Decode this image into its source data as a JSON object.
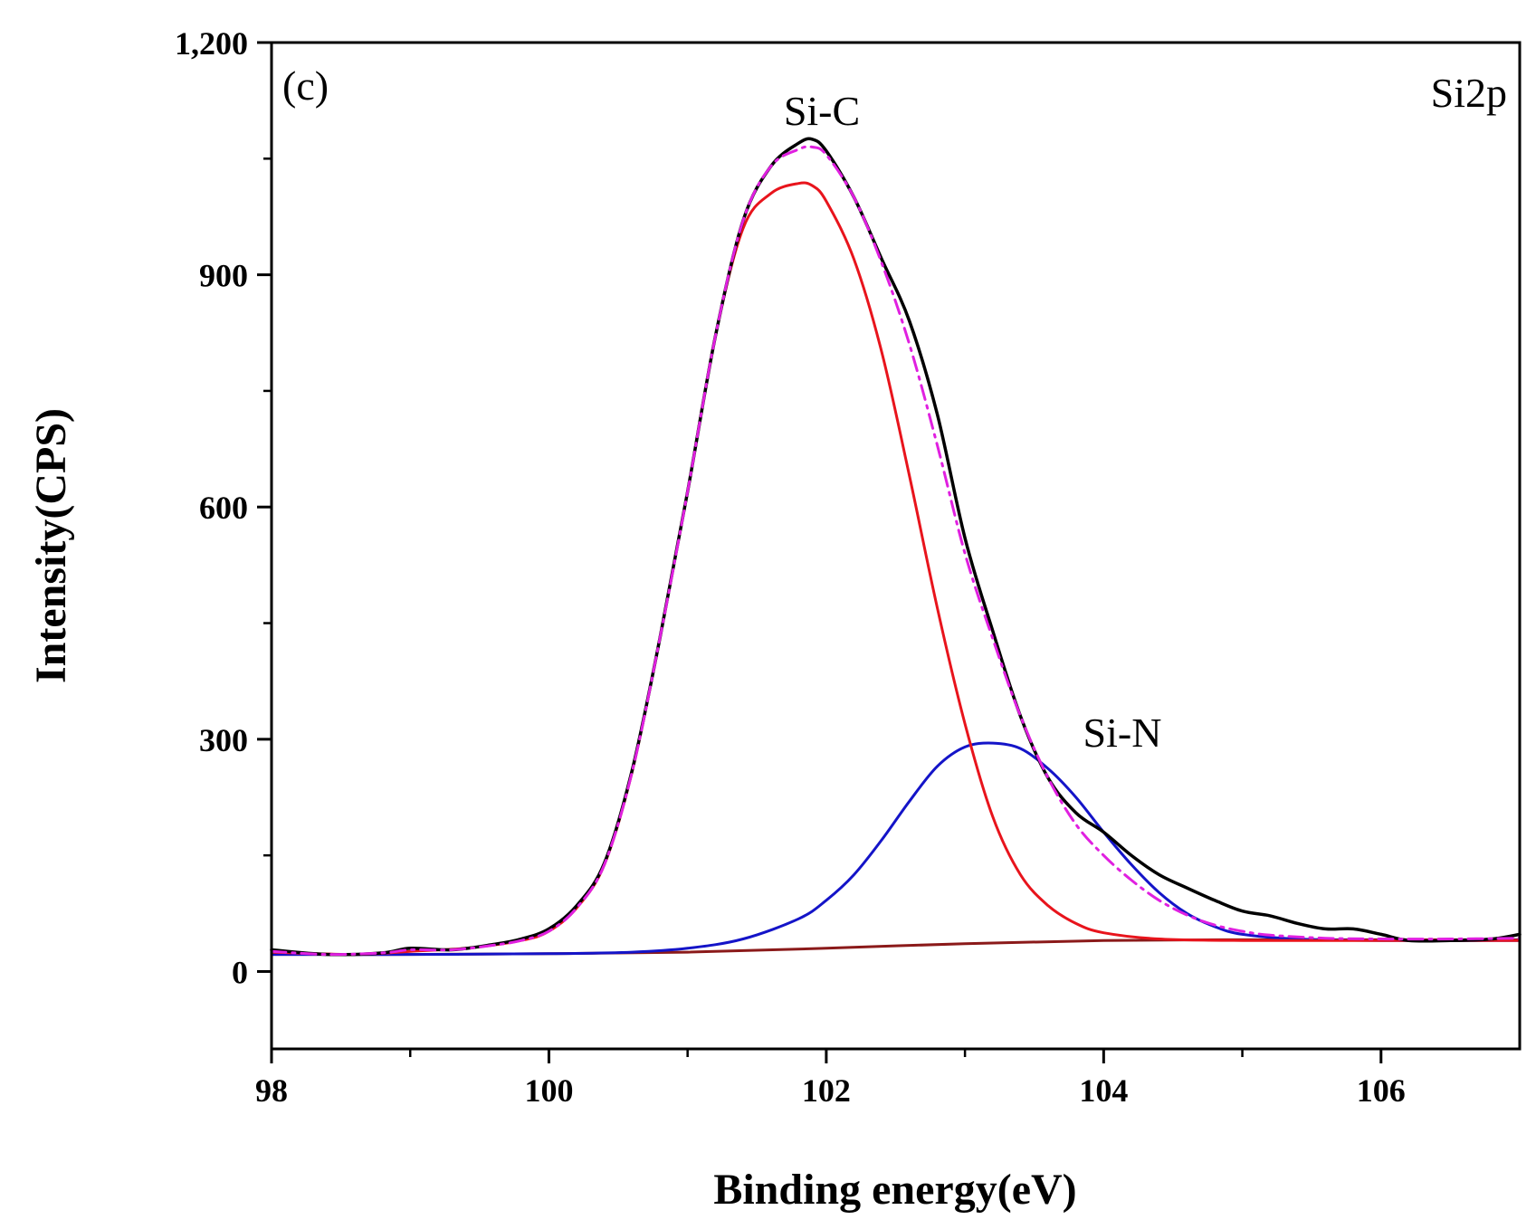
{
  "chart_data": {
    "type": "line",
    "xlabel": "Binding energy(eV)",
    "ylabel": "Intensity(CPS)",
    "xlim": [
      98,
      107
    ],
    "ylim": [
      -100,
      1200
    ],
    "xticks": [
      98,
      100,
      102,
      104,
      106
    ],
    "xtick_labels": [
      "98",
      "100",
      "102",
      "104",
      "106"
    ],
    "yticks": [
      0,
      300,
      600,
      900,
      1200
    ],
    "ytick_labels": [
      "0",
      "300",
      "600",
      "900",
      "1,200"
    ],
    "grid": false,
    "annotations": {
      "panel": "(c)",
      "region": "Si2p",
      "peak_sic": "Si-C",
      "peak_sin": "Si-N"
    },
    "colors": {
      "raw": "#000000",
      "sic": "#e8141c",
      "sin": "#1414c8",
      "envelope": "#e020e0",
      "background": "#8b1a1a"
    },
    "series": [
      {
        "key": "raw",
        "dash": "solid",
        "x": [
          98.0,
          98.4,
          98.8,
          99.0,
          99.3,
          99.6,
          99.8,
          100.0,
          100.2,
          100.4,
          100.6,
          100.8,
          101.0,
          101.2,
          101.4,
          101.6,
          101.8,
          101.9,
          102.0,
          102.2,
          102.4,
          102.6,
          102.8,
          103.0,
          103.2,
          103.4,
          103.6,
          103.8,
          104.0,
          104.2,
          104.4,
          104.6,
          104.8,
          105.0,
          105.2,
          105.4,
          105.6,
          105.8,
          106.0,
          106.2,
          106.5,
          106.8,
          107.0
        ],
        "y": [
          28,
          22,
          24,
          30,
          28,
          35,
          42,
          55,
          85,
          140,
          260,
          430,
          620,
          820,
          970,
          1040,
          1070,
          1075,
          1060,
          1000,
          920,
          840,
          720,
          560,
          440,
          330,
          250,
          205,
          180,
          150,
          125,
          108,
          92,
          78,
          72,
          62,
          55,
          55,
          48,
          40,
          40,
          42,
          48
        ]
      },
      {
        "key": "envelope",
        "dash": "dashdot",
        "x": [
          98.0,
          98.4,
          98.8,
          99.0,
          99.3,
          99.6,
          99.8,
          100.0,
          100.2,
          100.4,
          100.6,
          100.8,
          101.0,
          101.2,
          101.4,
          101.6,
          101.8,
          101.9,
          102.0,
          102.2,
          102.4,
          102.6,
          102.8,
          103.0,
          103.2,
          103.4,
          103.6,
          103.8,
          104.0,
          104.2,
          104.4,
          104.6,
          104.8,
          105.0,
          105.2,
          105.6,
          106.0,
          106.5,
          107.0
        ],
        "y": [
          26,
          22,
          24,
          28,
          28,
          34,
          40,
          52,
          82,
          138,
          258,
          430,
          620,
          820,
          970,
          1040,
          1062,
          1065,
          1055,
          1000,
          915,
          810,
          680,
          540,
          430,
          330,
          250,
          190,
          150,
          118,
          92,
          73,
          60,
          52,
          47,
          43,
          42,
          42,
          43
        ]
      },
      {
        "key": "sic",
        "dash": "solid",
        "x": [
          98.0,
          98.6,
          99.0,
          99.4,
          99.8,
          100.0,
          100.2,
          100.4,
          100.6,
          100.8,
          101.0,
          101.2,
          101.4,
          101.6,
          101.8,
          101.9,
          102.0,
          102.2,
          102.4,
          102.6,
          102.8,
          103.0,
          103.2,
          103.4,
          103.6,
          103.8,
          104.0,
          104.4,
          105.0,
          106.0,
          107.0
        ],
        "y": [
          25,
          22,
          26,
          30,
          40,
          52,
          82,
          138,
          258,
          430,
          620,
          820,
          960,
          1005,
          1018,
          1015,
          995,
          920,
          800,
          640,
          470,
          320,
          200,
          125,
          85,
          62,
          50,
          42,
          40,
          40,
          40
        ]
      },
      {
        "key": "sin",
        "dash": "solid",
        "x": [
          98.0,
          99.0,
          100.0,
          100.6,
          101.0,
          101.4,
          101.8,
          102.0,
          102.2,
          102.4,
          102.6,
          102.8,
          103.0,
          103.2,
          103.4,
          103.6,
          103.8,
          104.0,
          104.2,
          104.4,
          104.6,
          104.8,
          105.0,
          105.4,
          106.0,
          107.0
        ],
        "y": [
          22,
          22,
          23,
          25,
          30,
          42,
          68,
          92,
          125,
          170,
          220,
          265,
          290,
          295,
          288,
          262,
          225,
          180,
          138,
          102,
          75,
          58,
          48,
          42,
          40,
          40
        ]
      },
      {
        "key": "background",
        "dash": "solid",
        "x": [
          98.0,
          99.0,
          100.0,
          101.0,
          102.0,
          103.0,
          104.0,
          105.0,
          106.0,
          107.0
        ],
        "y": [
          22,
          22,
          23,
          25,
          30,
          36,
          40,
          41,
          41,
          41
        ]
      }
    ]
  }
}
